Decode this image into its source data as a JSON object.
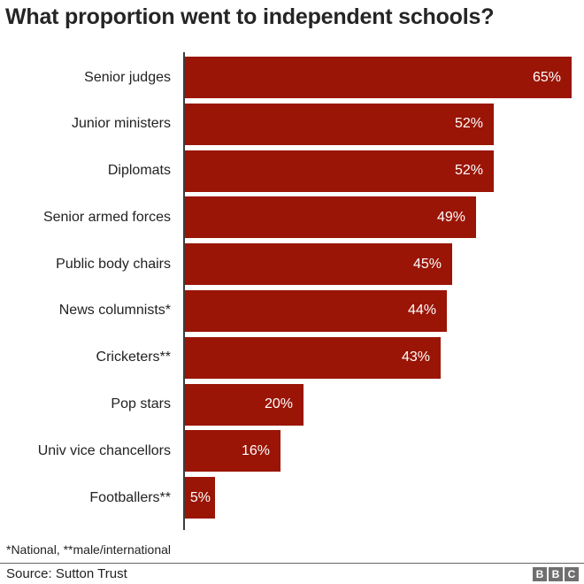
{
  "title": "What proportion went to independent schools?",
  "chart_data": {
    "type": "bar",
    "orientation": "horizontal",
    "title": "What proportion went to independent schools?",
    "categories": [
      "Senior judges",
      "Junior ministers",
      "Diplomats",
      "Senior armed forces",
      "Public body chairs",
      "News columnists*",
      "Cricketers**",
      "Pop stars",
      "Univ vice chancellors",
      "Footballers**"
    ],
    "values": [
      65,
      52,
      52,
      49,
      45,
      44,
      43,
      20,
      16,
      5
    ],
    "value_labels": [
      "65%",
      "52%",
      "52%",
      "49%",
      "45%",
      "44%",
      "43%",
      "20%",
      "16%",
      "5%"
    ],
    "xlabel": "",
    "ylabel": "",
    "xlim": [
      0,
      66
    ],
    "grid": false,
    "legend": false,
    "bar_color": "#9a1506",
    "value_label_color": "#ffffff",
    "axis_color": "#3d3d3d"
  },
  "footnote": "*National, **male/international",
  "source": "Source: Sutton Trust",
  "logo": {
    "name": "BBC",
    "letters": [
      "B",
      "B",
      "C"
    ],
    "block_color": "#6f6f6f",
    "letter_color": "#ffffff"
  }
}
